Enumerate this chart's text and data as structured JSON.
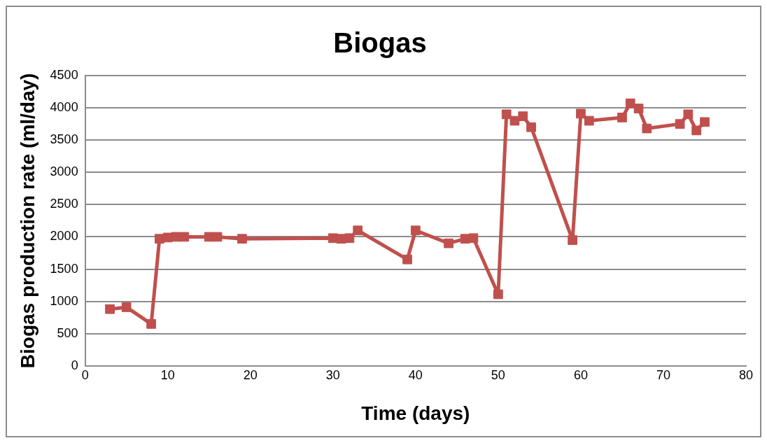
{
  "chart_data": {
    "type": "line",
    "title": "Biogas",
    "xlabel": "Time (days)",
    "ylabel": "Biogas production rate (ml/day)",
    "x": [
      3,
      5,
      8,
      9,
      10,
      11,
      12,
      15,
      16,
      19,
      30,
      31,
      32,
      33,
      39,
      40,
      44,
      46,
      47,
      50,
      51,
      52,
      53,
      54,
      59,
      60,
      61,
      65,
      66,
      67,
      68,
      72,
      73,
      74,
      75
    ],
    "series": [
      {
        "color": "#c0504d",
        "values": [
          880,
          910,
          650,
          1970,
          1990,
          2000,
          2000,
          2000,
          2000,
          1970,
          1980,
          1970,
          1980,
          2100,
          1650,
          2100,
          1900,
          1970,
          1980,
          1110,
          3900,
          3800,
          3870,
          3700,
          1950,
          3910,
          3800,
          3850,
          4070,
          3990,
          3680,
          3750,
          3900,
          3650,
          3780
        ]
      }
    ],
    "xlim": [
      0,
      80
    ],
    "xticks": [
      0,
      10,
      20,
      30,
      40,
      50,
      60,
      70,
      80
    ],
    "ylim": [
      0,
      4500
    ],
    "yticks": [
      0,
      500,
      1000,
      1500,
      2000,
      2500,
      3000,
      3500,
      4000,
      4500
    ],
    "grid": "y",
    "legend": false,
    "marker": "square",
    "line_style": "solid"
  }
}
